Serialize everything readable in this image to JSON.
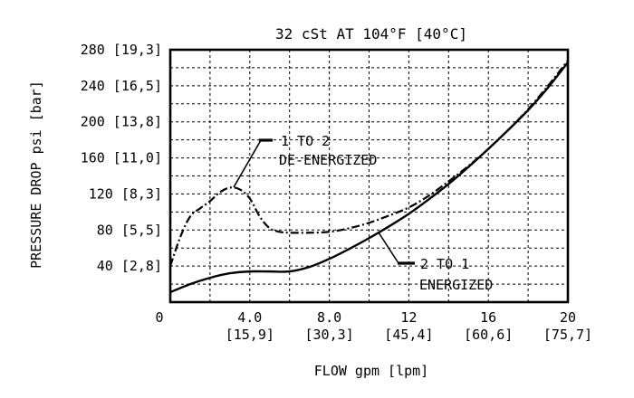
{
  "chart_data": {
    "type": "line",
    "title": "32 cSt AT 104°F [40°C]",
    "xlabel": "FLOW gpm [lpm]",
    "ylabel": "PRESSURE DROP psi [bar]",
    "xlim": [
      0,
      20
    ],
    "ylim": [
      0,
      280
    ],
    "grid": true,
    "x_ticks": [
      {
        "value": 0,
        "label": "0",
        "sub": ""
      },
      {
        "value": 4,
        "label": "4.0",
        "sub": "[15,9]"
      },
      {
        "value": 8,
        "label": "8.0",
        "sub": "[30,3]"
      },
      {
        "value": 12,
        "label": "12",
        "sub": "[45,4]"
      },
      {
        "value": 16,
        "label": "16",
        "sub": "[60,6]"
      },
      {
        "value": 20,
        "label": "20",
        "sub": "[75,7]"
      }
    ],
    "y_ticks": [
      {
        "value": 40,
        "label": "40 [2,8]"
      },
      {
        "value": 80,
        "label": "80 [5,5]"
      },
      {
        "value": 120,
        "label": "120 [8,3]"
      },
      {
        "value": 160,
        "label": "160 [11,0]"
      },
      {
        "value": 200,
        "label": "200 [13,8]"
      },
      {
        "value": 240,
        "label": "240 [16,5]"
      },
      {
        "value": 280,
        "label": "280 [19,3]"
      }
    ],
    "series": [
      {
        "name": "2 TO 1 ENERGIZED",
        "label_lines": [
          "2 TO 1",
          "ENERGIZED"
        ],
        "style": "solid",
        "x": [
          0,
          1,
          2,
          3,
          4,
          5,
          6,
          7,
          8,
          9,
          10,
          11,
          12,
          13,
          14,
          15,
          16,
          17,
          18,
          19,
          20
        ],
        "y": [
          11,
          20,
          27,
          32,
          34,
          34,
          34,
          39,
          48,
          59,
          71,
          84,
          98,
          114,
          131,
          150,
          170,
          191,
          213,
          238,
          266
        ]
      },
      {
        "name": "1 TO 2 DE-ENERGIZED",
        "label_lines": [
          "1 TO 2",
          "DE-ENERGIZED"
        ],
        "style": "dash-dot",
        "x": [
          0,
          0.5,
          1,
          1.5,
          2,
          2.5,
          3,
          3.5,
          4,
          4.5,
          5,
          5.5,
          6,
          7,
          8,
          9,
          10,
          11,
          12,
          13,
          14,
          15,
          16,
          17,
          18,
          19,
          20
        ],
        "y": [
          40,
          72,
          95,
          104,
          112,
          122,
          127,
          125,
          115,
          95,
          82,
          78,
          77,
          77,
          78,
          82,
          88,
          96,
          105,
          118,
          134,
          151,
          170,
          191,
          214,
          240,
          268
        ]
      }
    ],
    "colors": {
      "line": "#000000",
      "background": "#ffffff"
    }
  }
}
